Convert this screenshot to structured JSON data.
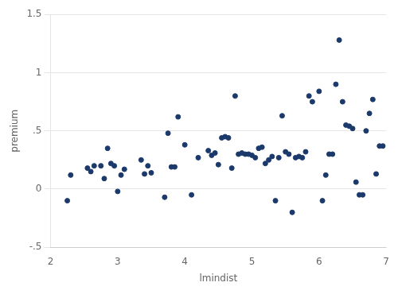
{
  "chart_data": {
    "type": "scatter",
    "x": [
      2.25,
      2.3,
      2.55,
      2.6,
      2.65,
      2.75,
      2.8,
      2.85,
      2.9,
      2.95,
      3.0,
      3.05,
      3.1,
      3.35,
      3.4,
      3.45,
      3.5,
      3.7,
      3.75,
      3.8,
      3.85,
      3.9,
      4.0,
      4.1,
      4.2,
      4.35,
      4.4,
      4.45,
      4.5,
      4.55,
      4.6,
      4.65,
      4.7,
      4.75,
      4.8,
      4.85,
      4.9,
      4.95,
      5.0,
      5.05,
      5.1,
      5.15,
      5.2,
      5.25,
      5.3,
      5.35,
      5.4,
      5.45,
      5.5,
      5.55,
      5.6,
      5.65,
      5.7,
      5.75,
      5.8,
      5.85,
      5.9,
      6.0,
      6.05,
      6.1,
      6.15,
      6.2,
      6.25,
      6.3,
      6.35,
      6.4,
      6.45,
      6.5,
      6.55,
      6.6,
      6.65,
      6.7,
      6.75,
      6.8,
      6.85,
      6.9,
      6.95
    ],
    "values": [
      -0.1,
      0.12,
      0.18,
      0.15,
      0.2,
      0.2,
      0.09,
      0.35,
      0.22,
      0.2,
      -0.02,
      0.12,
      0.17,
      0.25,
      0.13,
      0.2,
      0.14,
      -0.07,
      0.48,
      0.19,
      0.19,
      0.62,
      0.38,
      -0.05,
      0.27,
      0.33,
      0.29,
      0.31,
      0.21,
      0.44,
      0.45,
      0.44,
      0.18,
      0.8,
      0.3,
      0.31,
      0.3,
      0.3,
      0.29,
      0.27,
      0.35,
      0.36,
      0.22,
      0.25,
      0.28,
      -0.1,
      0.27,
      0.63,
      0.32,
      0.3,
      -0.2,
      0.27,
      0.28,
      0.27,
      0.32,
      0.8,
      0.75,
      0.84,
      -0.1,
      0.12,
      0.3,
      0.3,
      0.9,
      1.28,
      0.75,
      0.55,
      0.54,
      0.52,
      0.06,
      -0.05,
      -0.05,
      0.5,
      0.65,
      0.77,
      0.13,
      0.37,
      0.37
    ],
    "color": "#1B3A6B",
    "marker": "circle",
    "xlabel": "lmindist",
    "ylabel": "premium",
    "xlim": [
      2,
      7
    ],
    "ylim": [
      -0.5,
      1.5
    ],
    "xticks": [
      2,
      3,
      4,
      5,
      6,
      7
    ],
    "yticks": [
      {
        "value": -0.5,
        "label": "-.5"
      },
      0,
      {
        "value": 0.5,
        "label": ".5"
      },
      1,
      1.5
    ],
    "grid": "y"
  }
}
